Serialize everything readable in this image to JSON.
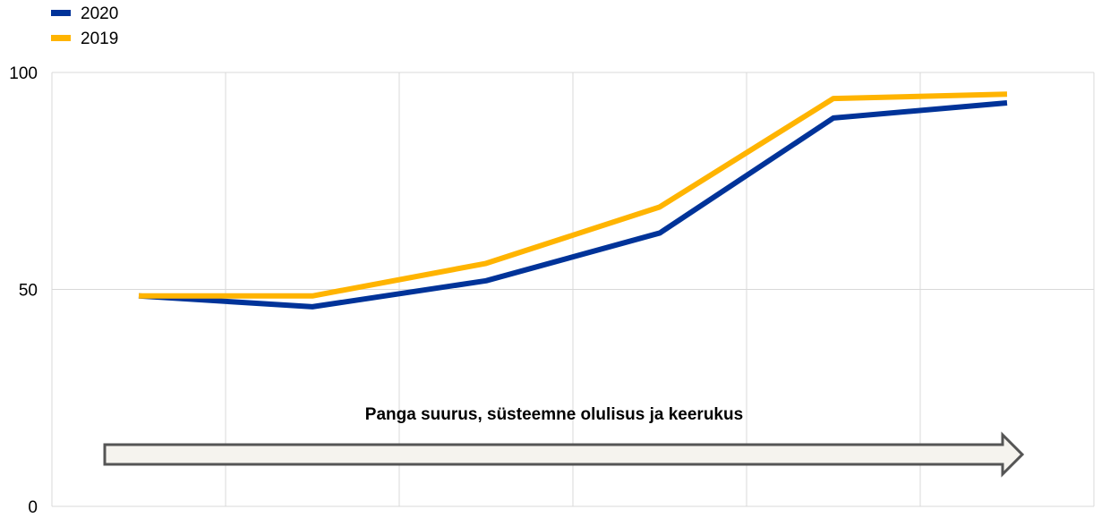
{
  "chart_data": {
    "type": "line",
    "x": [
      1,
      2,
      3,
      4,
      5,
      6
    ],
    "ylim": [
      0,
      100
    ],
    "yticks": [
      0,
      50,
      100
    ],
    "grid": "vertical-and-horizontal",
    "legend_position": "top-left",
    "series": [
      {
        "name": "2020",
        "color": "#003399",
        "values": [
          48.5,
          46,
          52,
          63,
          89.5,
          93
        ]
      },
      {
        "name": "2019",
        "color": "#FFB400",
        "values": [
          48.5,
          48.5,
          56,
          69,
          94,
          95
        ]
      }
    ],
    "annotation": {
      "text": "Panga suurus, süsteemne olulisus ja keerukus",
      "arrow_fill": "#F5F3EE",
      "arrow_stroke": "#555555"
    },
    "colors": {
      "grid": "#D9D9D9",
      "axis": "#BFBFBF"
    }
  }
}
